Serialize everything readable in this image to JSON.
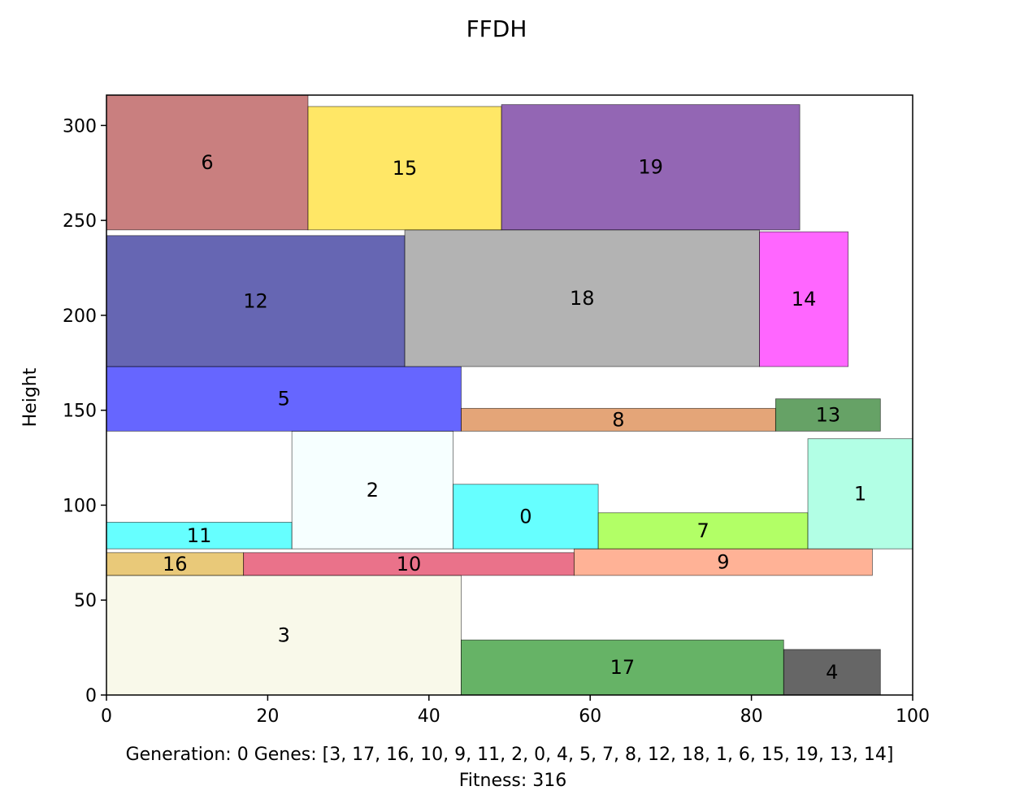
{
  "chart_data": {
    "type": "rectangle-packing",
    "title": "FFDH",
    "ylabel": "Height",
    "xlabel": "",
    "xlim": [
      0,
      100
    ],
    "ylim": [
      0,
      316
    ],
    "x_ticks": [
      "0",
      "20",
      "40",
      "60",
      "80",
      "100"
    ],
    "y_ticks": [
      "0",
      "50",
      "100",
      "150",
      "200",
      "250",
      "300"
    ],
    "rects": [
      {
        "id": "3",
        "x": 0,
        "y": 0,
        "w": 44,
        "h": 63,
        "color": "#f5f5dc"
      },
      {
        "id": "17",
        "x": 44,
        "y": 0,
        "w": 40,
        "h": 29,
        "color": "#008000"
      },
      {
        "id": "4",
        "x": 84,
        "y": 0,
        "w": 12,
        "h": 24,
        "color": "#000000"
      },
      {
        "id": "16",
        "x": 0,
        "y": 63,
        "w": 17,
        "h": 12,
        "color": "#daa520"
      },
      {
        "id": "10",
        "x": 17,
        "y": 63,
        "w": 41,
        "h": 12,
        "color": "#dc143c"
      },
      {
        "id": "9",
        "x": 58,
        "y": 63,
        "w": 37,
        "h": 14,
        "color": "#ff7f50"
      },
      {
        "id": "11",
        "x": 0,
        "y": 77,
        "w": 23,
        "h": 14,
        "color": "#00ffff"
      },
      {
        "id": "2",
        "x": 23,
        "y": 77,
        "w": 20,
        "h": 62,
        "color": "#f0ffff"
      },
      {
        "id": "0",
        "x": 43,
        "y": 77,
        "w": 18,
        "h": 34,
        "color": "#00ffff"
      },
      {
        "id": "7",
        "x": 61,
        "y": 77,
        "w": 26,
        "h": 19,
        "color": "#7fff00"
      },
      {
        "id": "1",
        "x": 87,
        "y": 77,
        "w": 13,
        "h": 58,
        "color": "#7fffd4"
      },
      {
        "id": "5",
        "x": 0,
        "y": 139,
        "w": 44,
        "h": 34,
        "color": "#0000ff"
      },
      {
        "id": "8",
        "x": 44,
        "y": 139,
        "w": 39,
        "h": 12,
        "color": "#d2691e"
      },
      {
        "id": "13",
        "x": 83,
        "y": 139,
        "w": 13,
        "h": 17,
        "color": "#006400"
      },
      {
        "id": "12",
        "x": 0,
        "y": 173,
        "w": 37,
        "h": 69,
        "color": "#000080"
      },
      {
        "id": "18",
        "x": 37,
        "y": 173,
        "w": 44,
        "h": 72,
        "color": "#808080"
      },
      {
        "id": "14",
        "x": 81,
        "y": 173,
        "w": 11,
        "h": 71,
        "color": "#ff00ff"
      },
      {
        "id": "6",
        "x": 0,
        "y": 245,
        "w": 25,
        "h": 71,
        "color": "#a52a2a"
      },
      {
        "id": "15",
        "x": 25,
        "y": 245,
        "w": 24,
        "h": 65,
        "color": "#ffd700"
      },
      {
        "id": "19",
        "x": 49,
        "y": 245,
        "w": 37,
        "h": 66,
        "color": "#4b0082"
      }
    ],
    "fill_opacity": 0.6,
    "caption_line1": "Generation: 0 Genes: [3, 17, 16, 10, 9, 11, 2, 0, 4, 5, 7, 8, 12, 18, 1, 6, 15, 19, 13, 14]",
    "caption_line2": "Fitness: 316"
  }
}
